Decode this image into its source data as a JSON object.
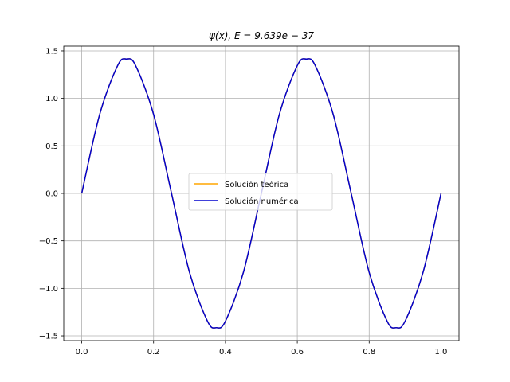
{
  "chart_data": {
    "type": "line",
    "title": "ψ(x), E = 9.639e − 37",
    "xlabel": "",
    "ylabel": "",
    "xlim": [
      -0.05,
      1.05
    ],
    "ylim": [
      -1.55,
      1.55
    ],
    "x_ticks": [
      0.0,
      0.2,
      0.4,
      0.6,
      0.8,
      1.0
    ],
    "x_tick_labels": [
      "0.0",
      "0.2",
      "0.4",
      "0.6",
      "0.8",
      "1.0"
    ],
    "y_ticks": [
      1.5,
      1.0,
      0.5,
      0.0,
      -0.5,
      -1.0,
      -1.5
    ],
    "y_tick_labels": [
      "1.5",
      "1.0",
      "0.5",
      "0.0",
      "−0.5",
      "−1.0",
      "−1.5"
    ],
    "grid": true,
    "legend": {
      "placement": "center",
      "entries": [
        "Solución teórica",
        "Solución numérica"
      ]
    },
    "series": [
      {
        "name": "Solución teórica",
        "color": "#ffa500",
        "x": [
          0.0,
          0.05,
          0.1,
          0.125,
          0.15,
          0.2,
          0.25,
          0.3,
          0.35,
          0.375,
          0.4,
          0.45,
          0.5,
          0.55,
          0.6,
          0.625,
          0.65,
          0.7,
          0.75,
          0.8,
          0.85,
          0.875,
          0.9,
          0.95,
          1.0
        ],
        "y": [
          0.0,
          0.831,
          1.345,
          1.414,
          1.345,
          0.831,
          0.0,
          -0.831,
          -1.345,
          -1.414,
          -1.345,
          -0.831,
          0.0,
          0.831,
          1.345,
          1.414,
          1.345,
          0.831,
          0.0,
          -0.831,
          -1.345,
          -1.414,
          -1.345,
          -0.831,
          0.0
        ]
      },
      {
        "name": "Solución numérica",
        "color": "#0000cd",
        "x": [
          0.0,
          0.05,
          0.1,
          0.125,
          0.15,
          0.2,
          0.25,
          0.3,
          0.35,
          0.375,
          0.4,
          0.45,
          0.5,
          0.55,
          0.6,
          0.625,
          0.65,
          0.7,
          0.75,
          0.8,
          0.85,
          0.875,
          0.9,
          0.95,
          1.0
        ],
        "y": [
          0.0,
          0.831,
          1.345,
          1.414,
          1.345,
          0.831,
          0.0,
          -0.831,
          -1.345,
          -1.414,
          -1.345,
          -0.831,
          0.0,
          0.831,
          1.345,
          1.414,
          1.345,
          0.831,
          0.0,
          -0.831,
          -1.345,
          -1.414,
          -1.345,
          -0.831,
          0.0
        ]
      }
    ]
  }
}
